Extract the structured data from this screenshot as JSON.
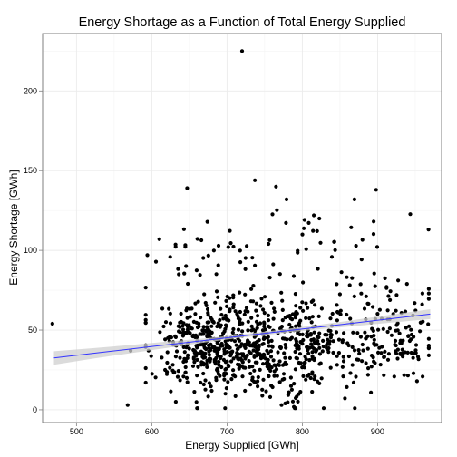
{
  "chart_data": {
    "type": "scatter",
    "title": "Energy Shortage as a Function of Total Energy Supplied",
    "xlabel": "Energy Supplied [GWh]",
    "ylabel": "Energy Shortage [GWh]",
    "xlim": [
      455,
      985
    ],
    "ylim": [
      -8,
      236
    ],
    "x_ticks": [
      500,
      600,
      700,
      800,
      900
    ],
    "x_tick_labels": [
      "500",
      "600",
      "700",
      "800",
      "900"
    ],
    "y_ticks": [
      0,
      50,
      100,
      150,
      200
    ],
    "y_tick_labels": [
      "0",
      "50",
      "100",
      "150",
      "200"
    ],
    "grid": true,
    "point_color": "#000000",
    "regression": {
      "method": "linear",
      "color": "#3333ff",
      "ribbon_color": "#cfcfcf",
      "x": [
        470,
        520,
        570,
        620,
        670,
        720,
        770,
        820,
        870,
        920,
        970
      ],
      "y": [
        32.5,
        35.3,
        38.0,
        40.8,
        43.5,
        46.3,
        49.0,
        51.8,
        54.5,
        57.3,
        60.0
      ],
      "lower": [
        28.3,
        32.0,
        35.4,
        38.8,
        42.2,
        45.3,
        47.9,
        50.4,
        52.6,
        54.8,
        56.9
      ],
      "upper": [
        36.7,
        38.6,
        40.6,
        42.8,
        44.8,
        47.3,
        50.1,
        53.2,
        56.4,
        59.8,
        63.1
      ]
    },
    "outliers": [
      {
        "x": 468,
        "y": 54
      },
      {
        "x": 720,
        "y": 225
      },
      {
        "x": 737,
        "y": 144
      },
      {
        "x": 647,
        "y": 139
      },
      {
        "x": 765,
        "y": 140
      },
      {
        "x": 898,
        "y": 138
      },
      {
        "x": 610,
        "y": 107
      },
      {
        "x": 572,
        "y": 37
      },
      {
        "x": 568,
        "y": 3
      }
    ],
    "clusters": [
      {
        "x_mean": 695,
        "x_sd": 45,
        "y_mean": 42,
        "y_sd": 15,
        "n": 520
      },
      {
        "x_mean": 805,
        "x_sd": 45,
        "y_mean": 40,
        "y_sd": 16,
        "n": 280
      },
      {
        "x_mean": 920,
        "x_sd": 30,
        "y_mean": 48,
        "y_sd": 15,
        "n": 130
      },
      {
        "x_mean": 700,
        "x_sd": 60,
        "y_mean": 95,
        "y_sd": 14,
        "n": 45
      },
      {
        "x_mean": 840,
        "x_sd": 55,
        "y_mean": 105,
        "y_sd": 16,
        "n": 35
      }
    ]
  }
}
